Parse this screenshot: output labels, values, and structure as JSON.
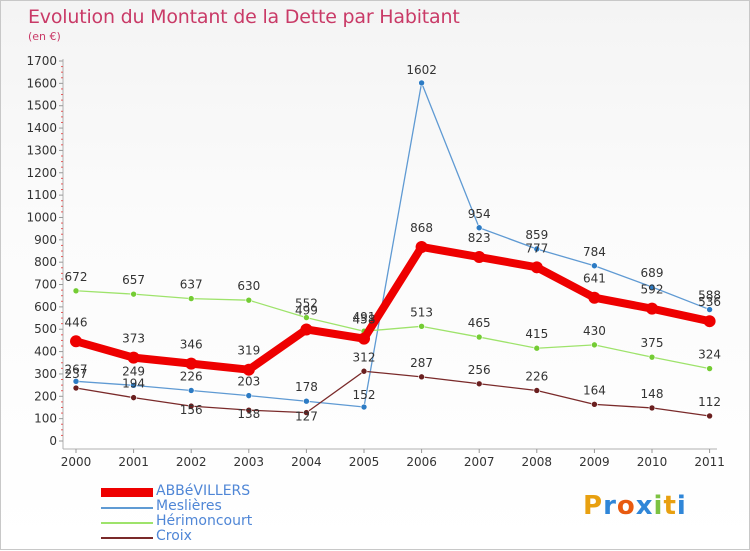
{
  "title": "Evolution du Montant de la Dette par Habitant",
  "subtitle": "(en €)",
  "logo_text": "Proxiti",
  "chart_data": {
    "type": "line",
    "title": "Evolution du Montant de la Dette par Habitant",
    "subtitle": "(en €)",
    "x": [
      "2000",
      "2001",
      "2002",
      "2003",
      "2004",
      "2005",
      "2006",
      "2007",
      "2008",
      "2009",
      "2010",
      "2011"
    ],
    "y_ticks": [
      "0",
      "100",
      "200",
      "300",
      "400",
      "500",
      "600",
      "700",
      "800",
      "900",
      "1000",
      "1100",
      "1200",
      "1300",
      "1400",
      "1500",
      "1600",
      "1700"
    ],
    "ylim": [
      0,
      1700
    ],
    "grid": false,
    "legend_position": "bottom-left",
    "series": [
      {
        "name": "Meslières",
        "color": "#5f9ad3",
        "marker": "#2c7bc4",
        "values": [
          267,
          249,
          226,
          203,
          178,
          152,
          1602,
          954,
          859,
          784,
          689,
          588
        ],
        "labels": [
          "267",
          "249",
          "226",
          "203",
          "178",
          "152",
          "1602",
          "954",
          "859",
          "784",
          "689",
          "588"
        ]
      },
      {
        "name": "Hérimoncourt",
        "color": "#9ee36b",
        "marker": "#74cc34",
        "values": [
          672,
          657,
          637,
          630,
          552,
          491,
          513,
          465,
          415,
          430,
          375,
          324
        ],
        "labels": [
          "672",
          "657",
          "637",
          "630",
          "552",
          "491",
          "513",
          "465",
          "415",
          "430",
          "375",
          "324"
        ]
      },
      {
        "name": "Croix",
        "color": "#7a2a2a",
        "marker": "#6a1f1f",
        "values": [
          237,
          194,
          156,
          138,
          127,
          312,
          287,
          256,
          226,
          164,
          148,
          112
        ],
        "labels": [
          "237",
          "194",
          "156",
          "138",
          "127",
          "312",
          "287",
          "256",
          "226",
          "164",
          "148",
          "112"
        ]
      },
      {
        "name": "ABBéVILLERS",
        "color": "#ee0000",
        "marker": "#ee0000",
        "values": [
          446,
          373,
          346,
          319,
          499,
          458,
          868,
          823,
          777,
          641,
          592,
          536
        ],
        "labels": [
          "446",
          "373",
          "346",
          "319",
          "499",
          "458",
          "868",
          "823",
          "777",
          "641",
          "592",
          "536"
        ]
      }
    ],
    "legend": [
      {
        "name": "ABBéVILLERS",
        "color": "#ee0000"
      },
      {
        "name": "Meslières",
        "color": "#5f9ad3"
      },
      {
        "name": "Hérimoncourt",
        "color": "#9ee36b"
      },
      {
        "name": "Croix",
        "color": "#7a2a2a"
      }
    ]
  }
}
